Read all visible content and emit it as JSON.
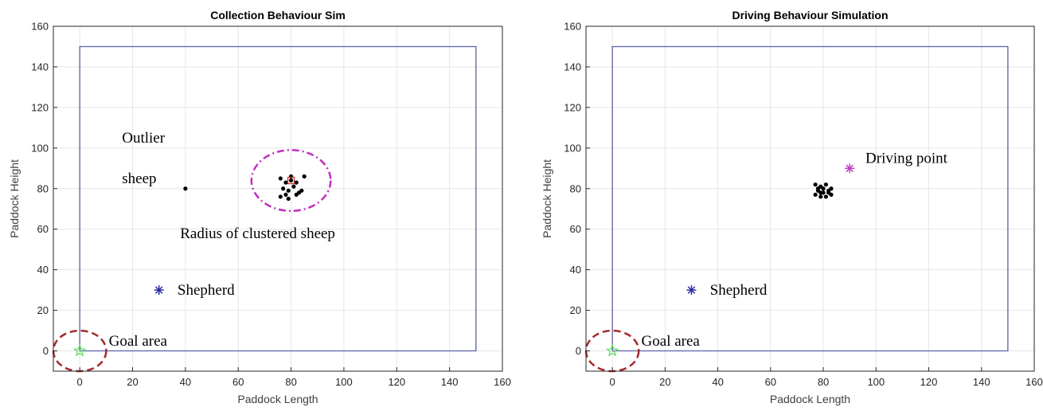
{
  "chart_data": [
    {
      "type": "scatter",
      "title": "Collection Behaviour Sim",
      "xlabel": "Paddock Length",
      "ylabel": "Paddock Height",
      "xlim": [
        -10,
        160
      ],
      "ylim": [
        -10,
        160
      ],
      "xticks": [
        0,
        20,
        40,
        60,
        80,
        100,
        120,
        140,
        160
      ],
      "yticks": [
        0,
        20,
        40,
        60,
        80,
        100,
        120,
        140,
        160
      ],
      "grid": true,
      "boundary": [
        [
          0,
          0
        ],
        [
          150,
          0
        ],
        [
          150,
          150
        ],
        [
          0,
          150
        ]
      ],
      "boundary_color": "#5b5fa8",
      "sheep": [
        [
          40,
          80
        ],
        [
          76,
          85
        ],
        [
          78,
          83
        ],
        [
          80,
          86
        ],
        [
          82,
          83
        ],
        [
          85,
          86
        ],
        [
          77,
          80
        ],
        [
          79,
          79
        ],
        [
          81,
          81
        ],
        [
          83,
          78
        ],
        [
          76,
          76
        ],
        [
          79,
          75
        ],
        [
          82,
          77
        ],
        [
          84,
          79
        ],
        [
          80,
          84
        ],
        [
          78,
          77
        ]
      ],
      "sheep_color": "#000000",
      "clustered_sheep_square": [
        80,
        84
      ],
      "shepherd": [
        30,
        30
      ],
      "shepherd_color": "#2b2ba8",
      "goal": [
        0,
        0
      ],
      "goal_color": "#55dd55",
      "goal_circle": {
        "center": [
          0,
          0
        ],
        "radius": 10,
        "color": "#a52a2a"
      },
      "cluster_circle": {
        "center": [
          80,
          84
        ],
        "rx": 15,
        "ry": 15,
        "color": "#bf2fbf"
      },
      "annotations": [
        {
          "text": "Outlier",
          "x": 16,
          "y": 105
        },
        {
          "text": "sheep",
          "x": 16,
          "y": 85
        },
        {
          "text": "Radius of clustered sheep",
          "x": 38,
          "y": 58
        },
        {
          "text": "Shepherd",
          "x": 37,
          "y": 30
        },
        {
          "text": "Goal area",
          "x": 11,
          "y": 5
        }
      ]
    },
    {
      "type": "scatter",
      "title": "Driving Behaviour Simulation",
      "xlabel": "Paddock Length",
      "ylabel": "Paddock Height",
      "xlim": [
        -10,
        160
      ],
      "ylim": [
        -10,
        160
      ],
      "xticks": [
        0,
        20,
        40,
        60,
        80,
        100,
        120,
        140,
        160
      ],
      "yticks": [
        0,
        20,
        40,
        60,
        80,
        100,
        120,
        140,
        160
      ],
      "grid": true,
      "boundary": [
        [
          0,
          0
        ],
        [
          150,
          0
        ],
        [
          150,
          150
        ],
        [
          0,
          150
        ]
      ],
      "boundary_color": "#5b5fa8",
      "sheep": [
        [
          77,
          82
        ],
        [
          79,
          81
        ],
        [
          81,
          82
        ],
        [
          83,
          80
        ],
        [
          78,
          79
        ],
        [
          80,
          78
        ],
        [
          82,
          78
        ],
        [
          77,
          77
        ],
        [
          79,
          76
        ],
        [
          81,
          76
        ],
        [
          83,
          77
        ],
        [
          78,
          80
        ],
        [
          80,
          80
        ],
        [
          82,
          79
        ],
        [
          79,
          78
        ]
      ],
      "sheep_color": "#000000",
      "shepherd": [
        30,
        30
      ],
      "shepherd_color": "#2b2ba8",
      "driving_point": [
        90,
        90
      ],
      "driving_point_color": "#c040c0",
      "goal": [
        0,
        0
      ],
      "goal_color": "#55dd55",
      "goal_circle": {
        "center": [
          0,
          0
        ],
        "radius": 10,
        "color": "#a52a2a"
      },
      "annotations": [
        {
          "text": "Driving point",
          "x": 96,
          "y": 95
        },
        {
          "text": "Shepherd",
          "x": 37,
          "y": 30
        },
        {
          "text": "Goal area",
          "x": 11,
          "y": 5
        }
      ]
    }
  ]
}
